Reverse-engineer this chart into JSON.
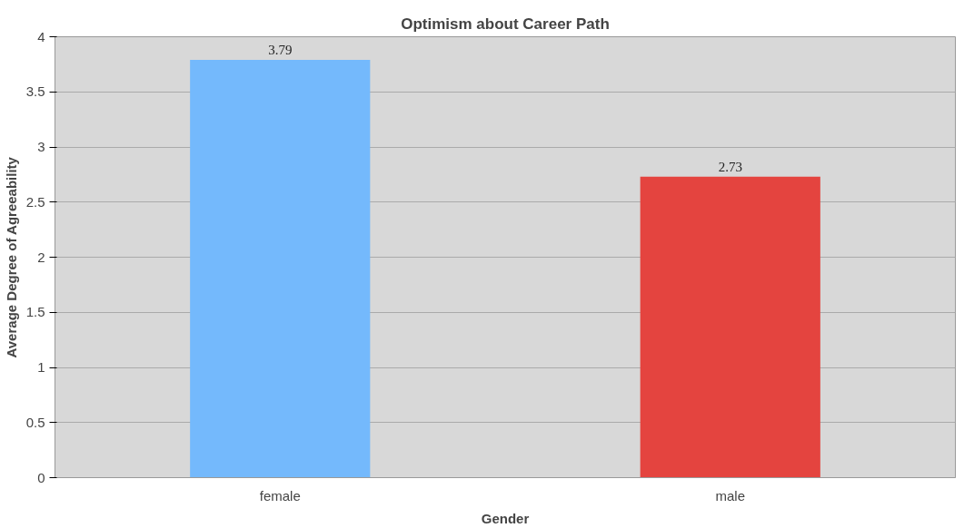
{
  "chart_data": {
    "type": "bar",
    "title": "Optimism about Career Path",
    "xlabel": "Gender",
    "ylabel": "Average Degree of Agreeability",
    "categories": [
      "female",
      "male"
    ],
    "values": [
      3.79,
      2.73
    ],
    "colors": [
      "#74b9fc",
      "#e4443f"
    ],
    "ylim": [
      0,
      4
    ],
    "yticks": [
      0,
      0.5,
      1,
      1.5,
      2,
      2.5,
      3,
      3.5,
      4
    ],
    "grid": "y",
    "data_labels": true
  }
}
